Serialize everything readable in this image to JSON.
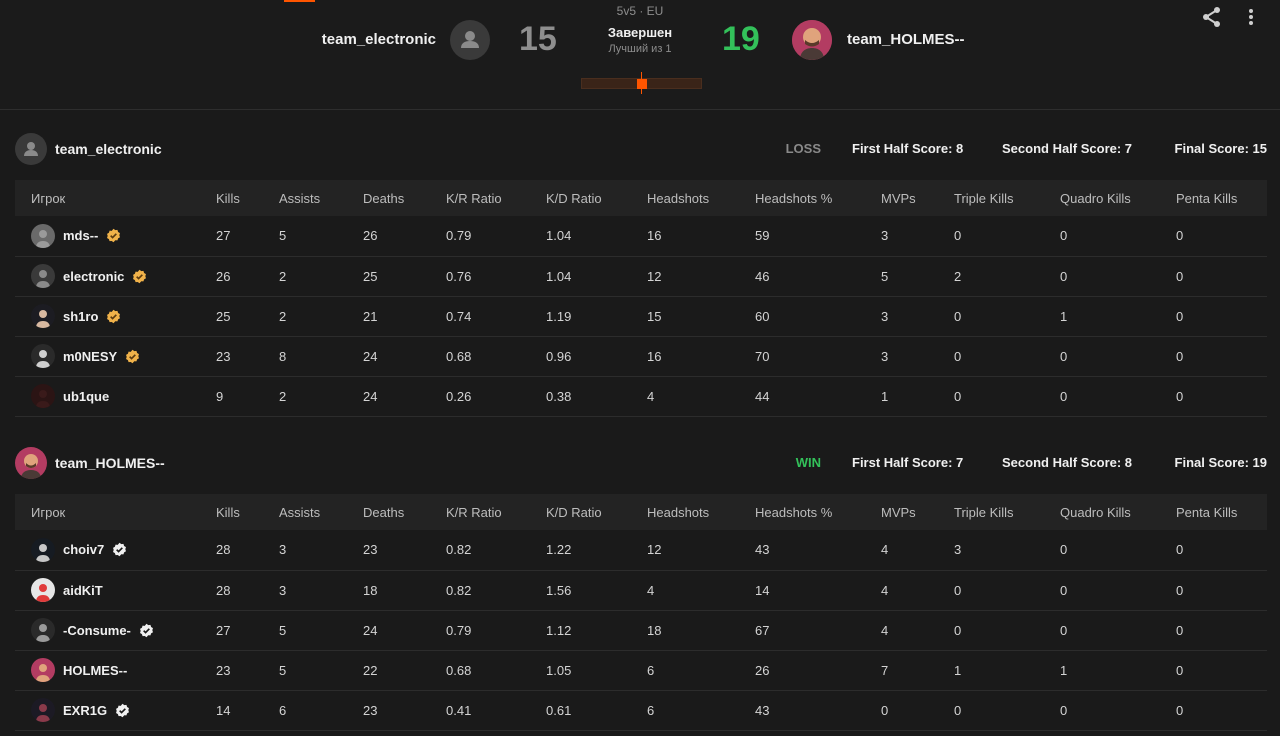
{
  "match": {
    "mode": "5v5 · EU",
    "status": "Завершен",
    "best_of": "Лучший из 1",
    "left_team": "team_electronic",
    "right_team": "team_HOLMES--",
    "left_score": "15",
    "right_score": "19",
    "progress_fraction": 0.5,
    "colors": {
      "accent": "#ff5500",
      "win": "#33c15a",
      "loss": "#8e8e8e"
    }
  },
  "actions": {
    "share_icon": "share-icon",
    "more_icon": "more-vertical-icon"
  },
  "columns": [
    "Игрок",
    "Kills",
    "Assists",
    "Deaths",
    "K/R Ratio",
    "K/D Ratio",
    "Headshots",
    "Headshots %",
    "MVPs",
    "Triple Kills",
    "Quadro Kills",
    "Penta Kills"
  ],
  "teams": [
    {
      "name": "team_electronic",
      "result": "LOSS",
      "first_half": "First Half Score: 8",
      "second_half": "Second Half Score: 7",
      "final": "Final Score: 15",
      "players": [
        {
          "name": "mds--",
          "badge": "gold",
          "stats": [
            "27",
            "5",
            "26",
            "0.79",
            "1.04",
            "16",
            "59",
            "3",
            "0",
            "0",
            "0"
          ]
        },
        {
          "name": "electronic",
          "badge": "gold",
          "stats": [
            "26",
            "2",
            "25",
            "0.76",
            "1.04",
            "12",
            "46",
            "5",
            "2",
            "0",
            "0"
          ]
        },
        {
          "name": "sh1ro",
          "badge": "gold",
          "stats": [
            "25",
            "2",
            "21",
            "0.74",
            "1.19",
            "15",
            "60",
            "3",
            "0",
            "1",
            "0"
          ]
        },
        {
          "name": "m0NESY",
          "badge": "gold",
          "stats": [
            "23",
            "8",
            "24",
            "0.68",
            "0.96",
            "16",
            "70",
            "3",
            "0",
            "0",
            "0"
          ]
        },
        {
          "name": "ub1que",
          "badge": "",
          "stats": [
            "9",
            "2",
            "24",
            "0.26",
            "0.38",
            "4",
            "44",
            "1",
            "0",
            "0",
            "0"
          ]
        }
      ]
    },
    {
      "name": "team_HOLMES--",
      "result": "WIN",
      "first_half": "First Half Score: 7",
      "second_half": "Second Half Score: 8",
      "final": "Final Score: 19",
      "players": [
        {
          "name": "choiv7",
          "badge": "white",
          "stats": [
            "28",
            "3",
            "23",
            "0.82",
            "1.22",
            "12",
            "43",
            "4",
            "3",
            "0",
            "0"
          ]
        },
        {
          "name": "aidKiT",
          "badge": "",
          "stats": [
            "28",
            "3",
            "18",
            "0.82",
            "1.56",
            "4",
            "14",
            "4",
            "0",
            "0",
            "0"
          ]
        },
        {
          "name": "-Consume-",
          "badge": "white",
          "stats": [
            "27",
            "5",
            "24",
            "0.79",
            "1.12",
            "18",
            "67",
            "4",
            "0",
            "0",
            "0"
          ]
        },
        {
          "name": "HOLMES--",
          "badge": "",
          "stats": [
            "23",
            "5",
            "22",
            "0.68",
            "1.05",
            "6",
            "26",
            "7",
            "1",
            "1",
            "0"
          ]
        },
        {
          "name": "EXR1G",
          "badge": "white",
          "stats": [
            "14",
            "6",
            "23",
            "0.41",
            "0.61",
            "6",
            "43",
            "0",
            "0",
            "0",
            "0"
          ]
        }
      ]
    }
  ]
}
